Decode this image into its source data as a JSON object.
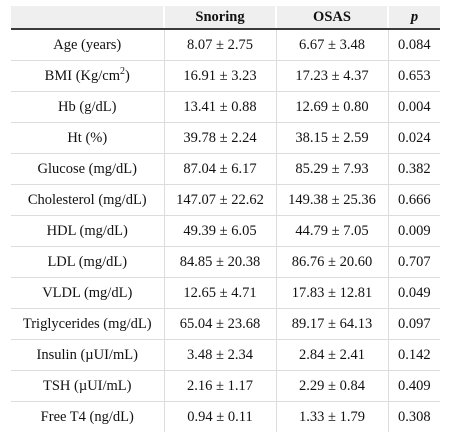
{
  "table": {
    "headers": [
      "",
      "Snoring",
      "OSAS",
      "p"
    ],
    "rows": [
      {
        "label": "Age (years)",
        "snoring": "8.07 ± 2.75",
        "osas": "6.67 ± 3.48",
        "p": "0.084"
      },
      {
        "label_prefix": "BMI (Kg/cm",
        "label_sup": "2",
        "label_suffix": ")",
        "snoring": "16.91 ± 3.23",
        "osas": "17.23 ± 4.37",
        "p": "0.653"
      },
      {
        "label": "Hb (g/dL)",
        "snoring": "13.41 ± 0.88",
        "osas": "12.69 ± 0.80",
        "p": "0.004"
      },
      {
        "label": "Ht (%)",
        "snoring": "39.78 ± 2.24",
        "osas": "38.15 ± 2.59",
        "p": "0.024"
      },
      {
        "label": "Glucose (mg/dL)",
        "snoring": "87.04 ± 6.17",
        "osas": "85.29 ± 7.93",
        "p": "0.382"
      },
      {
        "label": "Cholesterol (mg/dL)",
        "snoring": "147.07 ± 22.62",
        "osas": "149.38 ± 25.36",
        "p": "0.666"
      },
      {
        "label": "HDL (mg/dL)",
        "snoring": "49.39 ± 6.05",
        "osas": "44.79 ± 7.05",
        "p": "0.009"
      },
      {
        "label": "LDL (mg/dL)",
        "snoring": "84.85 ± 20.38",
        "osas": "86.76 ± 20.60",
        "p": "0.707"
      },
      {
        "label": "VLDL (mg/dL)",
        "snoring": "12.65 ± 4.71",
        "osas": "17.83 ± 12.81",
        "p": "0.049"
      },
      {
        "label": "Triglycerides (mg/dL)",
        "snoring": "65.04 ± 23.68",
        "osas": "89.17 ± 64.13",
        "p": "0.097"
      },
      {
        "label": "Insulin (µUI/mL)",
        "snoring": "3.48 ± 2.34",
        "osas": "2.84 ± 2.41",
        "p": "0.142"
      },
      {
        "label": "TSH (µUI/mL)",
        "snoring": "2.16 ± 1.17",
        "osas": "2.29 ± 0.84",
        "p": "0.409"
      },
      {
        "label": "Free T4 (ng/dL)",
        "snoring": "0.94 ± 0.11",
        "osas": "1.33 ± 1.79",
        "p": "0.308"
      }
    ]
  }
}
